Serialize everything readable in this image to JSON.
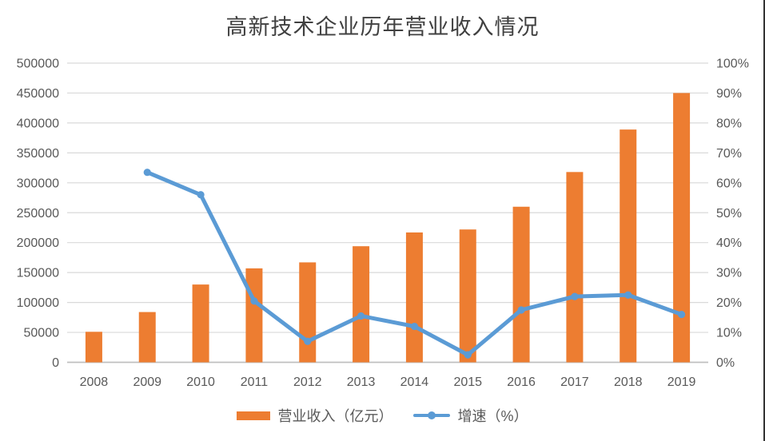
{
  "title": "高新技术企业历年营业收入情况",
  "colors": {
    "bar": "#ED7D31",
    "line": "#5B9BD5",
    "grid": "#D9D9D9",
    "axis_line": "#BFBFBF",
    "tick_text": "#595959",
    "title_text": "#404040",
    "edge_line": "#333333"
  },
  "chart_data": {
    "type": "combo-bar-line",
    "title": "高新技术企业历年营业收入情况",
    "categories": [
      "2008",
      "2009",
      "2010",
      "2011",
      "2012",
      "2013",
      "2014",
      "2015",
      "2016",
      "2017",
      "2018",
      "2019"
    ],
    "series": [
      {
        "name": "营业收入（亿元）",
        "type": "bar",
        "axis": "left",
        "values": [
          51000,
          84000,
          130000,
          157000,
          167000,
          194000,
          217000,
          222000,
          260000,
          318000,
          389000,
          450000
        ]
      },
      {
        "name": "增速（%）",
        "type": "line",
        "axis": "right",
        "values": [
          null,
          63.5,
          56,
          20.5,
          7,
          15.5,
          12,
          2.5,
          17.5,
          22,
          22.5,
          16
        ]
      }
    ],
    "left_axis": {
      "min": 0,
      "max": 500000,
      "step": 50000,
      "tick_labels": [
        "0",
        "50000",
        "100000",
        "150000",
        "200000",
        "250000",
        "300000",
        "350000",
        "400000",
        "450000",
        "500000"
      ]
    },
    "right_axis": {
      "min": 0,
      "max": 100,
      "step": 10,
      "tick_labels": [
        "0%",
        "10%",
        "20%",
        "30%",
        "40%",
        "50%",
        "60%",
        "70%",
        "80%",
        "90%",
        "100%"
      ]
    },
    "grid": true,
    "legend_position": "bottom"
  },
  "legend": {
    "items": [
      {
        "label": "营业收入（亿元）",
        "marker": "bar"
      },
      {
        "label": "增速（%）",
        "marker": "line-dot"
      }
    ]
  }
}
